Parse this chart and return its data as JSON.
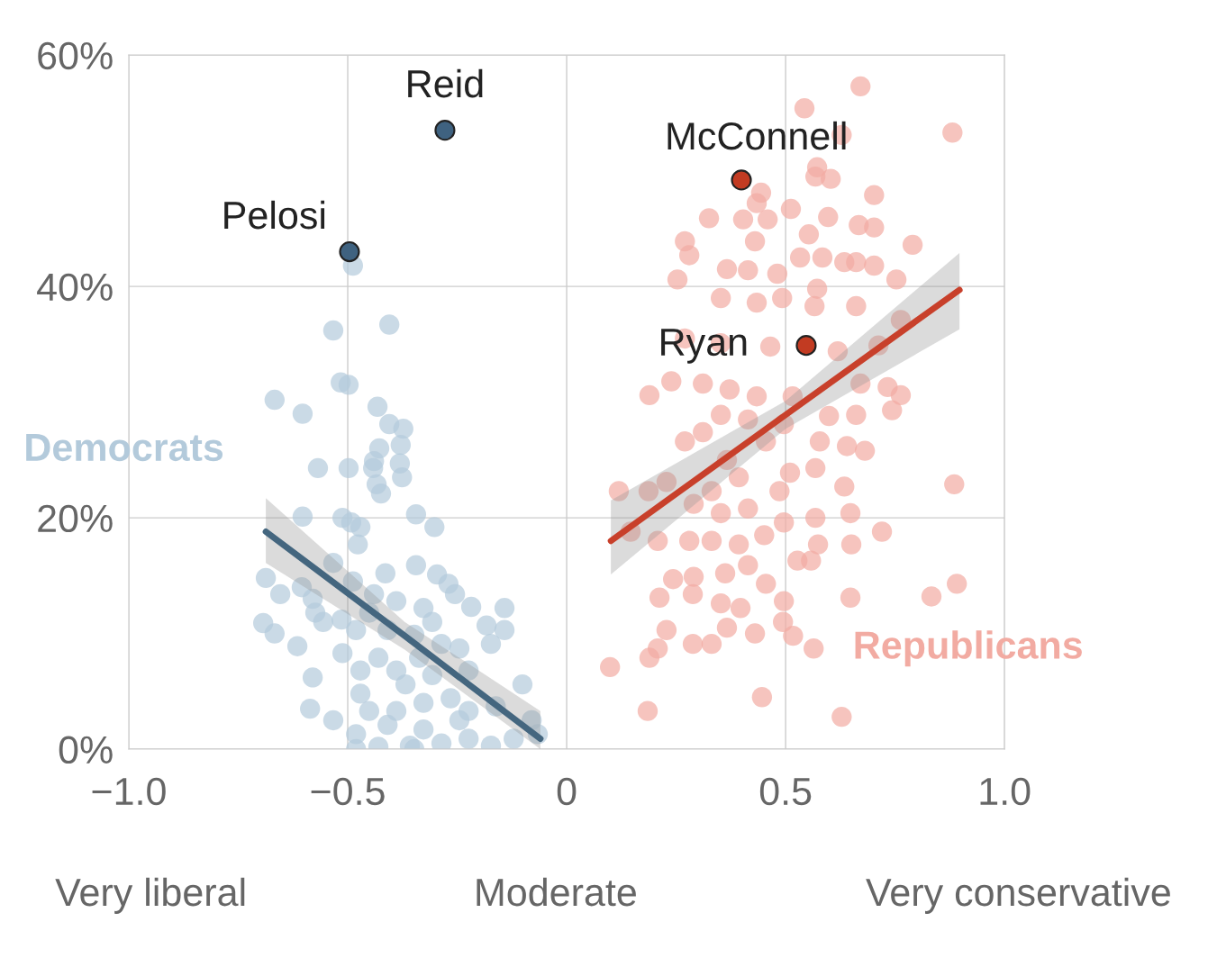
{
  "chart_data": {
    "type": "scatter",
    "xlim": [
      -1,
      1
    ],
    "ylim": [
      0,
      60
    ],
    "xticks": [
      {
        "value": -1,
        "label": "−1.0"
      },
      {
        "value": -0.5,
        "label": "−0.5"
      },
      0,
      0.5,
      {
        "value": 1,
        "label": "1.0"
      }
    ],
    "yticks": [
      {
        "value": 0,
        "label": "0%"
      },
      {
        "value": 20,
        "label": "20%"
      },
      {
        "value": 40,
        "label": "40%"
      },
      {
        "value": 60,
        "label": "60%"
      }
    ],
    "grid": true,
    "annotations": [
      "Very liberal",
      "Moderate",
      "Very conservative",
      {
        "text": "Pelosi",
        "x": -0.496,
        "y": 43.0
      },
      {
        "text": "Reid",
        "x": -0.278,
        "y": 53.5
      },
      {
        "text": "McConnell",
        "x": 0.399,
        "y": 49.2
      },
      {
        "text": "Ryan",
        "x": 0.547,
        "y": 34.9
      }
    ],
    "series": [
      {
        "name": "Democrats",
        "marker": "circle",
        "color": "#b3cadb",
        "x": [
          -0.533,
          -0.405,
          -0.516,
          -0.498,
          -0.667,
          -0.603,
          -0.432,
          -0.405,
          -0.373,
          -0.428,
          -0.379,
          -0.44,
          -0.381,
          -0.568,
          -0.498,
          -0.442,
          -0.376,
          -0.434,
          -0.424,
          -0.344,
          -0.603,
          -0.512,
          -0.492,
          -0.471,
          -0.302,
          -0.477,
          -0.533,
          -0.344,
          -0.687,
          -0.654,
          -0.605,
          -0.58,
          -0.488,
          -0.414,
          -0.296,
          -0.27,
          -0.218,
          -0.142,
          -0.693,
          -0.667,
          -0.574,
          -0.556,
          -0.514,
          -0.451,
          -0.389,
          -0.327,
          -0.183,
          -0.142,
          -0.173,
          -0.286,
          -0.512,
          -0.43,
          -0.337,
          -0.58,
          -0.471,
          -0.389,
          -0.307,
          -0.224,
          -0.586,
          -0.533,
          -0.471,
          -0.451,
          -0.389,
          -0.327,
          -0.265,
          -0.224,
          -0.162,
          -0.481,
          -0.481,
          -0.43,
          -0.358,
          -0.348,
          -0.286,
          -0.224,
          -0.173,
          -0.121,
          -0.066,
          -0.409,
          -0.327,
          -0.245,
          -0.368,
          -0.409,
          -0.348,
          -0.245,
          -0.307,
          -0.255,
          -0.44,
          -0.101,
          -0.08,
          -0.481,
          -0.615,
          -0.488
        ],
        "values": [
          36.2,
          36.7,
          31.7,
          31.5,
          30.2,
          29.0,
          29.6,
          28.1,
          27.7,
          26.0,
          26.3,
          24.9,
          24.7,
          24.3,
          24.3,
          24.3,
          23.5,
          22.9,
          22.1,
          20.3,
          20.1,
          20.0,
          19.6,
          19.2,
          19.2,
          17.7,
          16.1,
          15.9,
          14.8,
          13.4,
          14.0,
          13.0,
          14.5,
          15.2,
          15.1,
          14.3,
          12.3,
          12.2,
          10.9,
          10.0,
          11.8,
          11.0,
          11.2,
          11.8,
          12.8,
          12.2,
          10.7,
          10.3,
          9.1,
          9.1,
          8.3,
          7.9,
          7.9,
          6.2,
          6.8,
          6.8,
          6.4,
          6.8,
          3.5,
          2.5,
          4.8,
          3.3,
          3.3,
          4.0,
          4.4,
          3.3,
          3.7,
          1.3,
          0.0,
          0.2,
          0.3,
          0.0,
          0.5,
          0.9,
          0.3,
          0.9,
          1.3,
          2.1,
          1.7,
          2.5,
          5.6,
          10.3,
          9.9,
          8.7,
          11.0,
          13.4,
          13.4,
          5.6,
          2.5,
          10.3,
          8.9,
          41.8
        ]
      },
      {
        "name": "Republicans",
        "marker": "circle",
        "color": "#f2aba2",
        "x": [
          0.671,
          0.543,
          0.881,
          0.628,
          0.572,
          0.603,
          0.568,
          0.444,
          0.434,
          0.597,
          0.702,
          0.512,
          0.403,
          0.459,
          0.325,
          0.667,
          0.702,
          0.43,
          0.553,
          0.27,
          0.28,
          0.79,
          0.533,
          0.584,
          0.634,
          0.702,
          0.661,
          0.366,
          0.414,
          0.253,
          0.481,
          0.572,
          0.753,
          0.352,
          0.434,
          0.492,
          0.566,
          0.661,
          0.763,
          0.27,
          0.352,
          0.465,
          0.619,
          0.712,
          0.189,
          0.239,
          0.311,
          0.372,
          0.434,
          0.516,
          0.671,
          0.733,
          0.763,
          0.743,
          0.352,
          0.414,
          0.496,
          0.599,
          0.661,
          0.311,
          0.27,
          0.455,
          0.578,
          0.64,
          0.681,
          0.366,
          0.51,
          0.568,
          0.228,
          0.331,
          0.393,
          0.486,
          0.634,
          0.187,
          0.119,
          0.146,
          0.29,
          0.352,
          0.414,
          0.496,
          0.568,
          0.648,
          0.72,
          0.208,
          0.28,
          0.331,
          0.393,
          0.451,
          0.574,
          0.65,
          0.243,
          0.29,
          0.362,
          0.414,
          0.527,
          0.558,
          0.288,
          0.352,
          0.397,
          0.455,
          0.496,
          0.494,
          0.517,
          0.564,
          0.212,
          0.228,
          0.208,
          0.189,
          0.288,
          0.331,
          0.366,
          0.43,
          0.099,
          0.185,
          0.446,
          0.628,
          0.648,
          0.833,
          0.891,
          0.885
        ],
        "values": [
          57.3,
          55.4,
          53.3,
          53.1,
          50.3,
          49.3,
          49.5,
          48.1,
          47.2,
          46.0,
          47.9,
          46.7,
          45.8,
          45.8,
          45.9,
          45.3,
          45.1,
          43.9,
          44.5,
          43.9,
          42.7,
          43.6,
          42.5,
          42.5,
          42.1,
          41.8,
          42.1,
          41.5,
          41.4,
          40.6,
          41.1,
          39.8,
          40.6,
          39.0,
          38.6,
          39.0,
          38.3,
          38.3,
          37.1,
          35.5,
          35.1,
          34.8,
          34.4,
          34.9,
          30.6,
          31.8,
          31.6,
          31.1,
          30.5,
          30.5,
          31.6,
          31.3,
          30.6,
          29.3,
          28.9,
          28.5,
          28.1,
          28.8,
          28.9,
          27.4,
          26.6,
          26.6,
          26.6,
          26.2,
          25.8,
          25.0,
          23.9,
          24.3,
          23.1,
          22.3,
          23.5,
          22.3,
          22.7,
          22.3,
          22.3,
          18.8,
          21.2,
          20.4,
          20.8,
          19.6,
          20.0,
          20.4,
          18.8,
          18.0,
          18.0,
          18.0,
          17.7,
          18.5,
          17.7,
          17.7,
          14.7,
          14.9,
          15.2,
          15.9,
          16.3,
          16.3,
          13.4,
          12.6,
          12.2,
          14.3,
          12.8,
          11.0,
          9.8,
          8.7,
          13.1,
          10.3,
          8.7,
          7.9,
          9.1,
          9.1,
          10.5,
          10.0,
          7.1,
          3.3,
          4.5,
          2.8,
          13.1,
          13.2,
          14.3,
          22.9
        ]
      },
      {
        "type": "line",
        "marker": "none",
        "color": "#44667f",
        "x": [
          -0.687,
          -0.37,
          -0.06
        ],
        "values": [
          18.8,
          9.8,
          0.9
        ],
        "lower": [
          16.1,
          8.6,
          0.0
        ],
        "upper": [
          21.7,
          11.0,
          3.3
        ]
      },
      {
        "type": "line",
        "marker": "none",
        "color": "#c8402b",
        "x": [
          0.101,
          0.5,
          0.897
        ],
        "values": [
          18.0,
          28.9,
          39.7
        ],
        "lower": [
          15.1,
          27.7,
          36.3
        ],
        "upper": [
          21.5,
          30.1,
          42.9
        ]
      },
      {
        "marker": "circle",
        "color": "#3f6280",
        "x": [
          -0.496,
          -0.278
        ],
        "values": [
          43.0,
          53.5
        ]
      },
      {
        "marker": "circle",
        "color": "#c23b22",
        "x": [
          0.399,
          0.547
        ],
        "values": [
          49.2,
          34.9
        ]
      }
    ]
  }
}
